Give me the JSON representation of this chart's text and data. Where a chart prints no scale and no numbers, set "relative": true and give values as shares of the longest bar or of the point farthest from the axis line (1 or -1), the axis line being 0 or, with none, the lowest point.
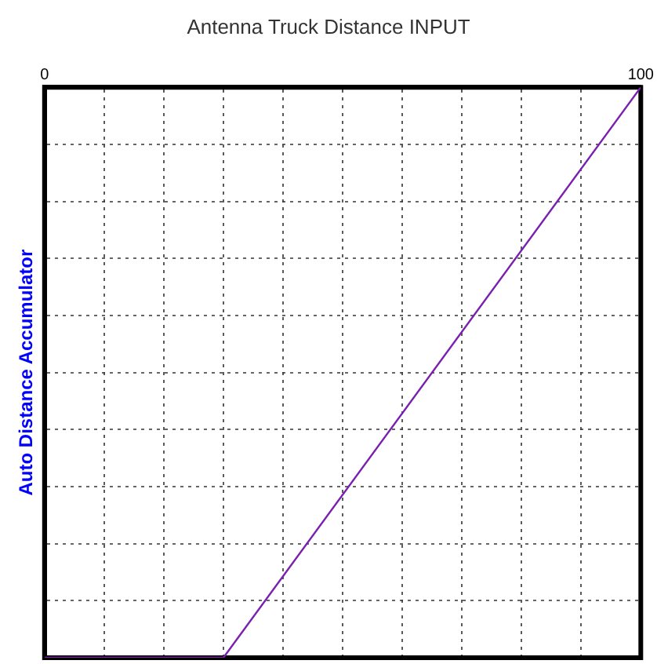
{
  "chart_data": {
    "type": "line",
    "title": "Antenna Truck Distance INPUT",
    "ylabel": "Auto Distance Accumulator",
    "relative": true,
    "x": [
      0,
      30,
      100
    ],
    "series": [
      {
        "color": "#7a1fb0",
        "values": [
          0,
          0,
          1
        ]
      }
    ],
    "xlim": [
      0,
      100
    ],
    "xticks": [
      0,
      {
        "value": 10,
        "label": null
      },
      {
        "value": 20,
        "label": null
      },
      {
        "value": 30,
        "label": null
      },
      {
        "value": 40,
        "label": null
      },
      {
        "value": 50,
        "label": null
      },
      {
        "value": 60,
        "label": null
      },
      {
        "value": 70,
        "label": null
      },
      {
        "value": 80,
        "label": null
      },
      {
        "value": 90,
        "label": null
      },
      100
    ],
    "grid": true,
    "legend": false,
    "marker": "none",
    "line_style": "solid"
  }
}
